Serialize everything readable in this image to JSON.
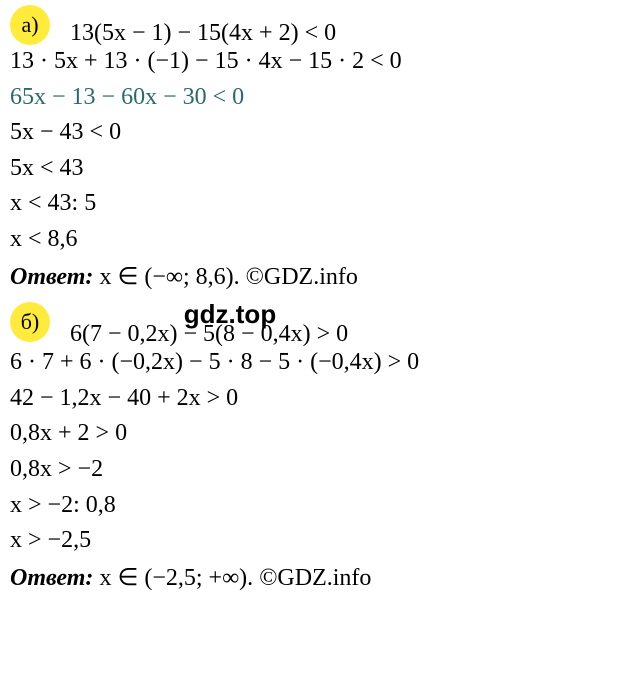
{
  "section_a": {
    "label": "а)",
    "line1": "13(5x − 1) − 15(4x + 2) < 0",
    "line2": "13 · 5x + 13 · (−1) − 15 · 4x − 15 · 2 < 0",
    "line3": "65x − 13 − 60x − 30 < 0",
    "line4": "5x − 43 < 0",
    "line5": "5x < 43",
    "line6": "x < 43: 5",
    "line7": "x < 8,6",
    "answer_label": "Ответ:",
    "answer_value": " x ∈ (−∞; 8,6). ",
    "copyright": "©GDZ.info"
  },
  "watermark": "gdz.top",
  "section_b": {
    "label": "б)",
    "line1": "6(7 − 0,2x) − 5(8 − 0,4x) > 0",
    "line2": "6 · 7 + 6 · (−0,2x) − 5 · 8 − 5 · (−0,4x) > 0",
    "line3": "42 − 1,2x − 40 + 2x > 0",
    "line4": "0,8x + 2 > 0",
    "line5": "0,8x > −2",
    "line6": "x > −2: 0,8",
    "line7": "x > −2,5",
    "answer_label": "Ответ:",
    "answer_value": " x ∈ (−2,5; +∞). ",
    "copyright": "©GDZ.info"
  },
  "colors": {
    "highlight_bg": "#ffeb3b",
    "teal_text": "#2a6a6a",
    "black_text": "#000000",
    "background": "#ffffff"
  }
}
